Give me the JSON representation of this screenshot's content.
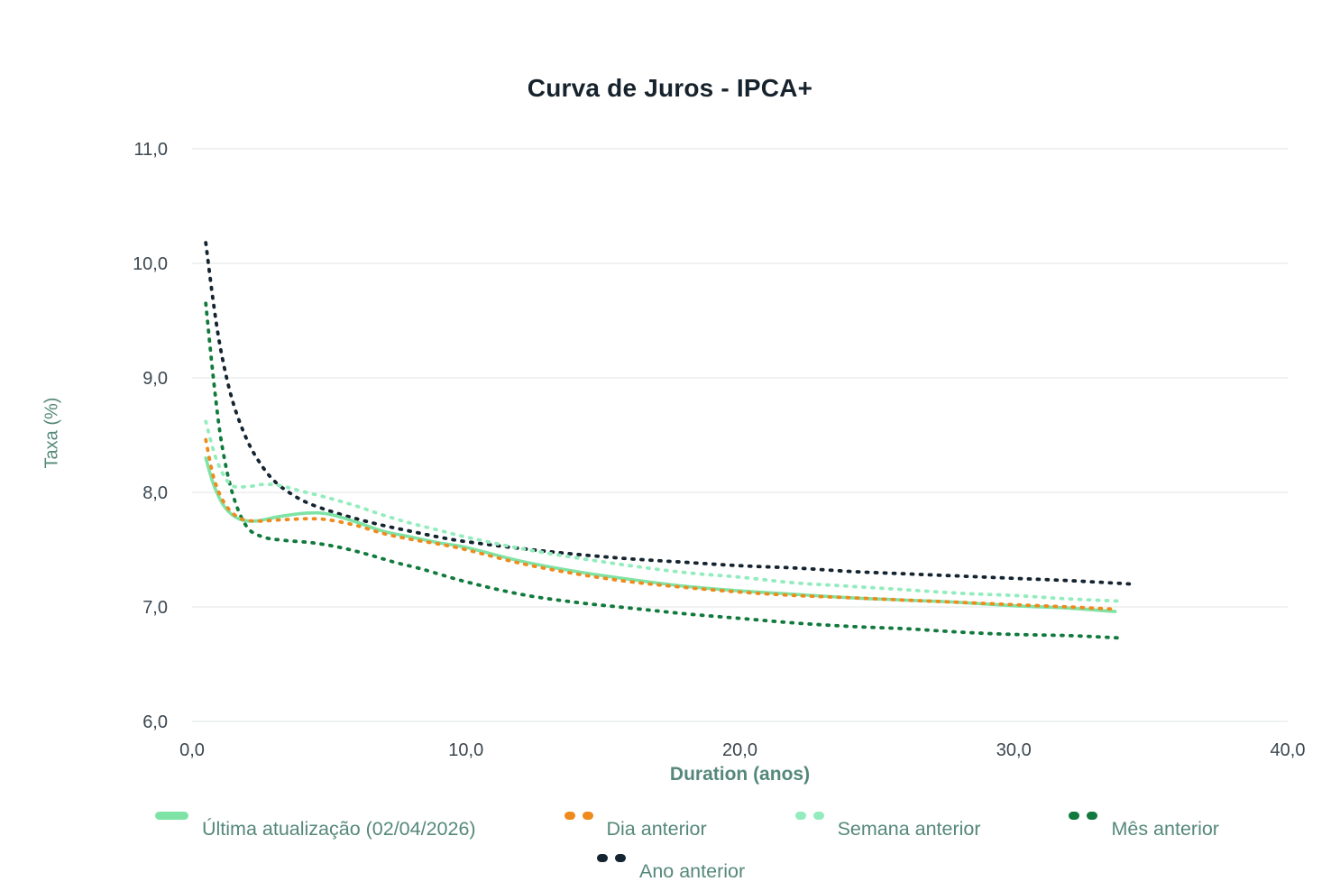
{
  "chart": {
    "title": "Curva de Juros - IPCA+",
    "ylabel": "Taxa (%)",
    "xlabel": "Duration (anos)"
  },
  "colors": {
    "title_text": "#16222c",
    "axis_label_text": "#55887a",
    "tick_label_text": "#3b4750",
    "gridline": "#ebeeee",
    "background": "#ffffff"
  },
  "chart_data": {
    "type": "line",
    "title": "Curva de Juros - IPCA+",
    "xlabel": "Duration (anos)",
    "ylabel": "Taxa (%)",
    "xlim": [
      0.0,
      40.0
    ],
    "ylim": [
      6.0,
      11.0
    ],
    "grid": "horizontal",
    "legend_position": "bottom",
    "x_ticks": [
      {
        "value": 0,
        "label": "0,0"
      },
      {
        "value": 10,
        "label": "10,0"
      },
      {
        "value": 20,
        "label": "20,0"
      },
      {
        "value": 30,
        "label": "30,0"
      },
      {
        "value": 40,
        "label": "40,0"
      }
    ],
    "y_ticks": [
      {
        "value": 6,
        "label": "6,0"
      },
      {
        "value": 7,
        "label": "7,0"
      },
      {
        "value": 8,
        "label": "8,0"
      },
      {
        "value": 9,
        "label": "9,0"
      },
      {
        "value": 10,
        "label": "10,0"
      },
      {
        "value": 11,
        "label": "11,0"
      }
    ],
    "series": [
      {
        "name": "Última atualização (02/04/2026)",
        "color": "#7fe3a6",
        "dash": false,
        "points": [
          [
            0.5,
            8.3
          ],
          [
            0.8,
            8.06
          ],
          [
            1.2,
            7.87
          ],
          [
            1.7,
            7.77
          ],
          [
            2.3,
            7.75
          ],
          [
            3.2,
            7.79
          ],
          [
            4.2,
            7.82
          ],
          [
            5.0,
            7.81
          ],
          [
            6.0,
            7.74
          ],
          [
            7.0,
            7.66
          ],
          [
            8.0,
            7.61
          ],
          [
            9.0,
            7.56
          ],
          [
            10,
            7.52
          ],
          [
            12,
            7.4
          ],
          [
            14,
            7.31
          ],
          [
            16,
            7.24
          ],
          [
            18,
            7.18
          ],
          [
            20,
            7.14
          ],
          [
            22,
            7.11
          ],
          [
            24,
            7.08
          ],
          [
            26,
            7.06
          ],
          [
            28,
            7.04
          ],
          [
            30,
            7.01
          ],
          [
            32,
            6.99
          ],
          [
            33.7,
            6.96
          ]
        ]
      },
      {
        "name": "Dia anterior",
        "color": "#ef8a1c",
        "dash": true,
        "points": [
          [
            0.5,
            8.46
          ],
          [
            0.8,
            8.12
          ],
          [
            1.2,
            7.9
          ],
          [
            1.7,
            7.78
          ],
          [
            2.3,
            7.75
          ],
          [
            3.2,
            7.76
          ],
          [
            4.2,
            7.77
          ],
          [
            5.0,
            7.76
          ],
          [
            6.0,
            7.71
          ],
          [
            7.0,
            7.64
          ],
          [
            8.0,
            7.59
          ],
          [
            9.0,
            7.55
          ],
          [
            10,
            7.5
          ],
          [
            12,
            7.38
          ],
          [
            14,
            7.29
          ],
          [
            16,
            7.22
          ],
          [
            18,
            7.17
          ],
          [
            20,
            7.13
          ],
          [
            22,
            7.1
          ],
          [
            24,
            7.08
          ],
          [
            26,
            7.06
          ],
          [
            28,
            7.04
          ],
          [
            30,
            7.02
          ],
          [
            32,
            7.0
          ],
          [
            33.7,
            6.98
          ]
        ]
      },
      {
        "name": "Semana anterior",
        "color": "#93ecbd",
        "dash": true,
        "points": [
          [
            0.5,
            8.62
          ],
          [
            0.9,
            8.28
          ],
          [
            1.4,
            8.07
          ],
          [
            2.0,
            8.05
          ],
          [
            2.6,
            8.07
          ],
          [
            3.2,
            8.06
          ],
          [
            4.0,
            8.01
          ],
          [
            5.0,
            7.95
          ],
          [
            6.0,
            7.88
          ],
          [
            7.0,
            7.8
          ],
          [
            8.0,
            7.73
          ],
          [
            9.0,
            7.67
          ],
          [
            10,
            7.61
          ],
          [
            12,
            7.51
          ],
          [
            14,
            7.43
          ],
          [
            16,
            7.36
          ],
          [
            18,
            7.3
          ],
          [
            20,
            7.26
          ],
          [
            22,
            7.21
          ],
          [
            24,
            7.18
          ],
          [
            26,
            7.15
          ],
          [
            28,
            7.12
          ],
          [
            30,
            7.1
          ],
          [
            32,
            7.07
          ],
          [
            34,
            7.05
          ]
        ]
      },
      {
        "name": "Mês anterior",
        "color": "#117a3d",
        "dash": true,
        "points": [
          [
            0.5,
            9.65
          ],
          [
            0.8,
            8.95
          ],
          [
            1.1,
            8.4
          ],
          [
            1.5,
            7.97
          ],
          [
            2.0,
            7.7
          ],
          [
            2.6,
            7.61
          ],
          [
            3.4,
            7.58
          ],
          [
            4.4,
            7.56
          ],
          [
            5.4,
            7.52
          ],
          [
            6.4,
            7.46
          ],
          [
            7.4,
            7.39
          ],
          [
            8.4,
            7.33
          ],
          [
            10,
            7.22
          ],
          [
            12,
            7.11
          ],
          [
            14,
            7.04
          ],
          [
            16,
            6.99
          ],
          [
            18,
            6.94
          ],
          [
            20,
            6.9
          ],
          [
            22,
            6.86
          ],
          [
            24,
            6.83
          ],
          [
            26,
            6.81
          ],
          [
            28,
            6.78
          ],
          [
            30,
            6.76
          ],
          [
            32,
            6.75
          ],
          [
            33.8,
            6.73
          ]
        ]
      },
      {
        "name": "Ano anterior",
        "color": "#142430",
        "dash": true,
        "points": [
          [
            0.5,
            10.18
          ],
          [
            0.8,
            9.62
          ],
          [
            1.1,
            9.18
          ],
          [
            1.5,
            8.78
          ],
          [
            2.0,
            8.46
          ],
          [
            2.5,
            8.25
          ],
          [
            3.0,
            8.1
          ],
          [
            3.6,
            7.99
          ],
          [
            4.2,
            7.91
          ],
          [
            5.0,
            7.84
          ],
          [
            6.0,
            7.77
          ],
          [
            7.0,
            7.71
          ],
          [
            8.0,
            7.66
          ],
          [
            9.0,
            7.61
          ],
          [
            10,
            7.57
          ],
          [
            12,
            7.51
          ],
          [
            14,
            7.46
          ],
          [
            16,
            7.42
          ],
          [
            18,
            7.39
          ],
          [
            20,
            7.36
          ],
          [
            22,
            7.34
          ],
          [
            24,
            7.31
          ],
          [
            26,
            7.29
          ],
          [
            28,
            7.27
          ],
          [
            30,
            7.25
          ],
          [
            32,
            7.23
          ],
          [
            34.3,
            7.2
          ]
        ]
      }
    ]
  }
}
